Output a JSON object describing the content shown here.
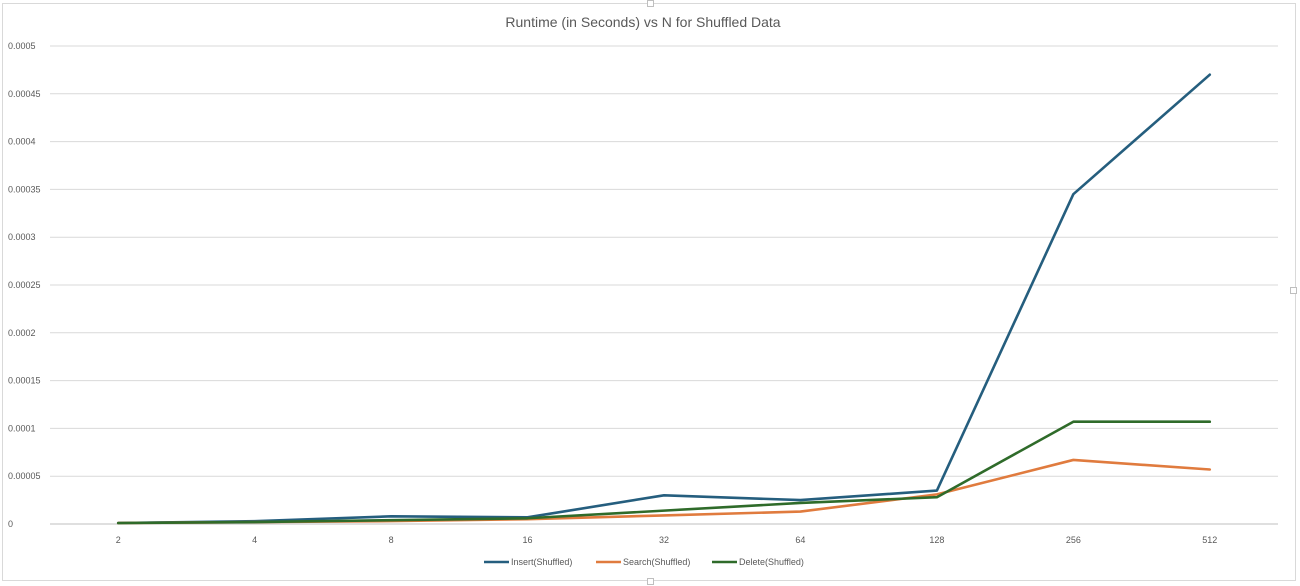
{
  "chart_data": {
    "type": "line",
    "title": "Runtime (in Seconds) vs N for Shuffled Data",
    "xlabel": "",
    "ylabel": "",
    "categories": [
      "2",
      "4",
      "8",
      "16",
      "32",
      "64",
      "128",
      "256",
      "512"
    ],
    "ylim": [
      0,
      0.0005
    ],
    "yticks": [
      "0",
      "0.00005",
      "0.0001",
      "0.00015",
      "0.0002",
      "0.00025",
      "0.0003",
      "0.00035",
      "0.0004",
      "0.00045",
      "0.0005"
    ],
    "grid": true,
    "legend_position": "bottom",
    "series": [
      {
        "name": "Insert(Shuffled)",
        "color": "#255e7e",
        "values": [
          1e-06,
          3e-06,
          8e-06,
          7e-06,
          3e-05,
          2.5e-05,
          3.5e-05,
          0.000345,
          0.00047
        ]
      },
      {
        "name": "Search(Shuffled)",
        "color": "#e07b3e",
        "values": [
          1e-06,
          2e-06,
          3e-06,
          5e-06,
          9e-06,
          1.3e-05,
          3.1e-05,
          6.7e-05,
          5.7e-05
        ]
      },
      {
        "name": "Delete(Shuffled)",
        "color": "#2f6b2a",
        "values": [
          1e-06,
          2e-06,
          4e-06,
          6e-06,
          1.4e-05,
          2.2e-05,
          2.8e-05,
          0.000107,
          0.000107
        ]
      }
    ]
  }
}
